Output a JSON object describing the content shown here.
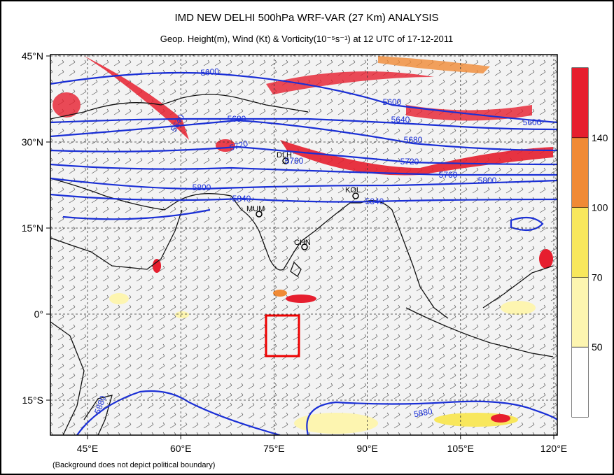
{
  "header": {
    "title": "IMD NEW DELHI 500hPa WRF-VAR (27 Km) ANALYSIS",
    "subtitle": "Geop. Height(m), Wind (Kt) & Vorticity(10⁻⁵s⁻¹) at 12 UTC of 17-12-2011"
  },
  "map": {
    "lat_ticks": [
      {
        "value": 45,
        "label": "45°N"
      },
      {
        "value": 30,
        "label": "30°N"
      },
      {
        "value": 15,
        "label": "15°N"
      },
      {
        "value": 0,
        "label": "0°"
      },
      {
        "value": -15,
        "label": "15°S"
      }
    ],
    "lon_ticks": [
      {
        "value": 45,
        "label": "45°E"
      },
      {
        "value": 60,
        "label": "60°E"
      },
      {
        "value": 75,
        "label": "75°E"
      },
      {
        "value": 90,
        "label": "90°E"
      },
      {
        "value": 105,
        "label": "105°E"
      },
      {
        "value": 120,
        "label": "120°E"
      }
    ],
    "cities": [
      "DLH",
      "KOL",
      "MUM",
      "CHN"
    ],
    "contour_labels": [
      "5600",
      "5640",
      "5680",
      "5720",
      "5760",
      "5800",
      "5840",
      "5600",
      "5640",
      "5680",
      "5720",
      "5760",
      "5800",
      "5840",
      "5600",
      "5880",
      "5880"
    ]
  },
  "colorbar": {
    "levels": [
      50,
      70,
      100,
      140
    ],
    "colors": [
      "#ffffff",
      "#fdf5b0",
      "#f8e75c",
      "#f08a35",
      "#e61e2e"
    ]
  },
  "footnote": "(Background does not depict political boundary)"
}
